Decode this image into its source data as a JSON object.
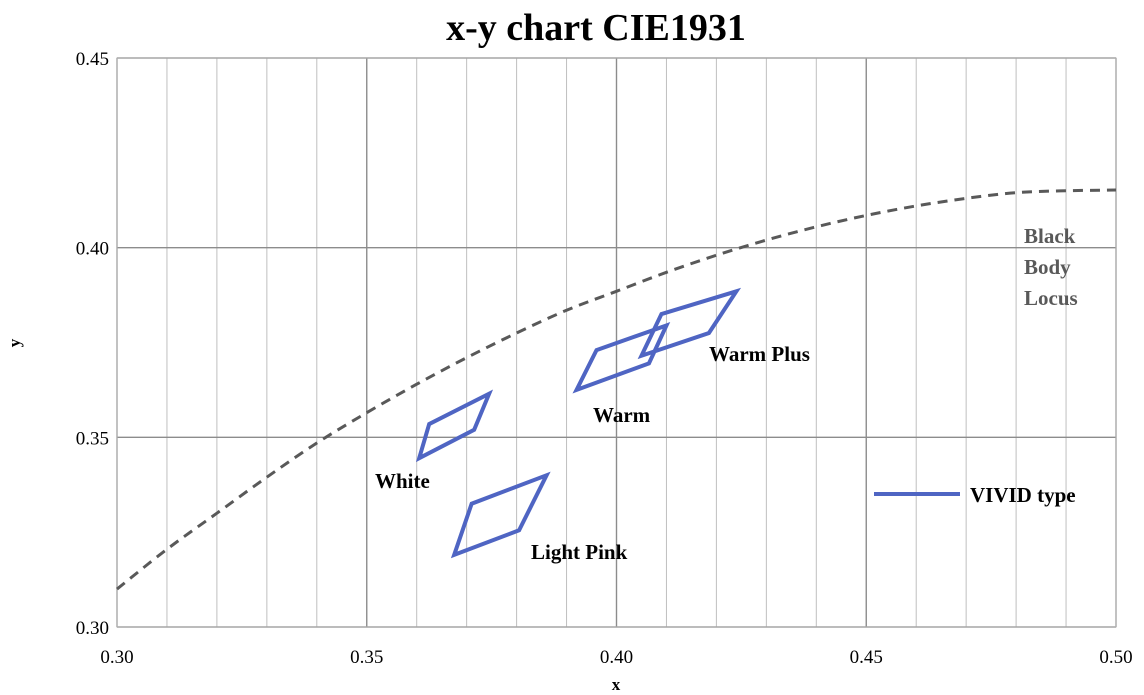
{
  "chart_data": {
    "type": "line",
    "title": "x-y chart  CIE1931",
    "xlabel": "x",
    "ylabel": "y",
    "xlim": [
      0.3,
      0.5
    ],
    "ylim": [
      0.3,
      0.45
    ],
    "x_ticks": [
      "0.30",
      "0.35",
      "0.40",
      "0.45",
      "0.50"
    ],
    "y_ticks": [
      "0.30",
      "0.35",
      "0.40",
      "0.45"
    ],
    "grid": true,
    "legend_position": "right",
    "series": [
      {
        "name": "VIVID type",
        "color": "#4f65c3",
        "regions": [
          {
            "label": "White",
            "points": [
              [
                0.3605,
                0.3445
              ],
              [
                0.3625,
                0.3535
              ],
              [
                0.3745,
                0.3615
              ],
              [
                0.3715,
                0.352
              ]
            ]
          },
          {
            "label": "Light Pink",
            "points": [
              [
                0.3675,
                0.319
              ],
              [
                0.371,
                0.3325
              ],
              [
                0.386,
                0.34
              ],
              [
                0.3805,
                0.3255
              ]
            ]
          },
          {
            "label": "Warm",
            "points": [
              [
                0.392,
                0.3625
              ],
              [
                0.396,
                0.373
              ],
              [
                0.41,
                0.3795
              ],
              [
                0.4065,
                0.3695
              ]
            ]
          },
          {
            "label": "Warm Plus",
            "points": [
              [
                0.405,
                0.3715
              ],
              [
                0.409,
                0.3825
              ],
              [
                0.424,
                0.3885
              ],
              [
                0.4185,
                0.3775
              ]
            ]
          }
        ]
      }
    ],
    "reference_curve": {
      "label": [
        "Black",
        "Body",
        "Locus"
      ],
      "color": "#595959",
      "x": [
        0.3,
        0.31,
        0.32,
        0.33,
        0.34,
        0.35,
        0.36,
        0.37,
        0.38,
        0.39,
        0.4,
        0.41,
        0.42,
        0.43,
        0.44,
        0.45,
        0.46,
        0.47,
        0.48,
        0.49,
        0.5
      ],
      "y": [
        0.31,
        0.3205,
        0.33,
        0.3395,
        0.3485,
        0.3565,
        0.364,
        0.371,
        0.3775,
        0.3835,
        0.3885,
        0.3935,
        0.398,
        0.402,
        0.4055,
        0.4085,
        0.411,
        0.413,
        0.4145,
        0.415,
        0.4152
      ]
    }
  }
}
